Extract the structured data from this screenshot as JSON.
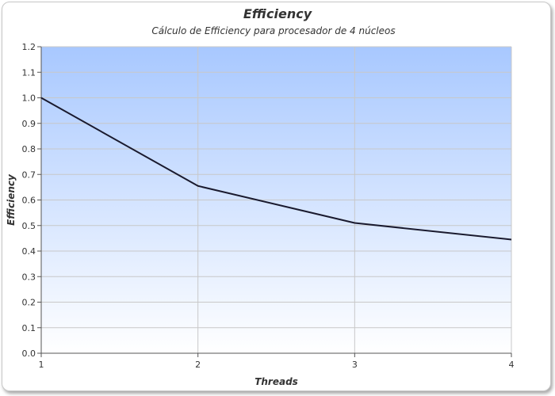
{
  "chart_data": {
    "type": "line",
    "title": "Efficiency",
    "subtitle": "Cálculo de Efficiency para procesador de 4 núcleos",
    "xlabel": "Threads",
    "ylabel": "Efficiency",
    "x": [
      1,
      2,
      3,
      4
    ],
    "series": [
      {
        "values": [
          1.0,
          0.655,
          0.51,
          0.445
        ]
      }
    ],
    "xlim": [
      1,
      4
    ],
    "ylim": [
      0,
      1.2
    ],
    "yticks": [
      "0.0",
      "0.1",
      "0.2",
      "0.3",
      "0.4",
      "0.5",
      "0.6",
      "0.7",
      "0.8",
      "0.9",
      "1.0",
      "1.1",
      "1.2"
    ],
    "xticks": [
      "1",
      "2",
      "3",
      "4"
    ],
    "grid": true,
    "colors": {
      "line": "#1a1a2e",
      "plot_top": "#a8c8ff",
      "plot_bottom": "#ffffff",
      "grid": "#c8c8c8"
    }
  }
}
